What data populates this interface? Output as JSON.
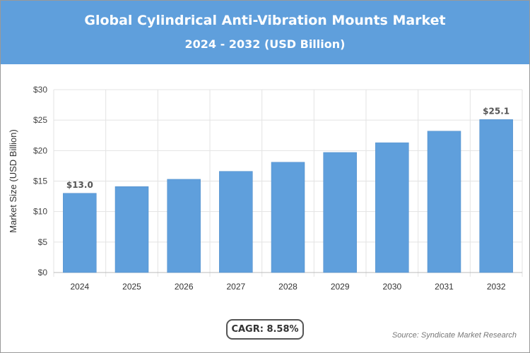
{
  "header": {
    "title": "Global Cylindrical Anti-Vibration Mounts Market",
    "subtitle": "2024 - 2032 (USD Billion)"
  },
  "chart_data": {
    "type": "bar",
    "title": "Global Cylindrical Anti-Vibration Mounts Market",
    "subtitle": "2024 - 2032 (USD Billion)",
    "categories": [
      "2024",
      "2025",
      "2026",
      "2027",
      "2028",
      "2029",
      "2030",
      "2031",
      "2032"
    ],
    "values": [
      13.0,
      14.1,
      15.3,
      16.6,
      18.1,
      19.7,
      21.3,
      23.2,
      25.1
    ],
    "data_labels": {
      "0": "$13.0",
      "8": "$25.1"
    },
    "ylabel": "Market Size (USD Billion)",
    "xlabel": "",
    "ylim": [
      0,
      30
    ],
    "yticks": [
      "$0",
      "$5",
      "$10",
      "$15",
      "$20",
      "$25",
      "$30"
    ],
    "grid": true,
    "bar_color": "#5f9fdc"
  },
  "footer": {
    "cagr": "CAGR: 8.58%",
    "source": "Source: Syndicate Market Research"
  }
}
